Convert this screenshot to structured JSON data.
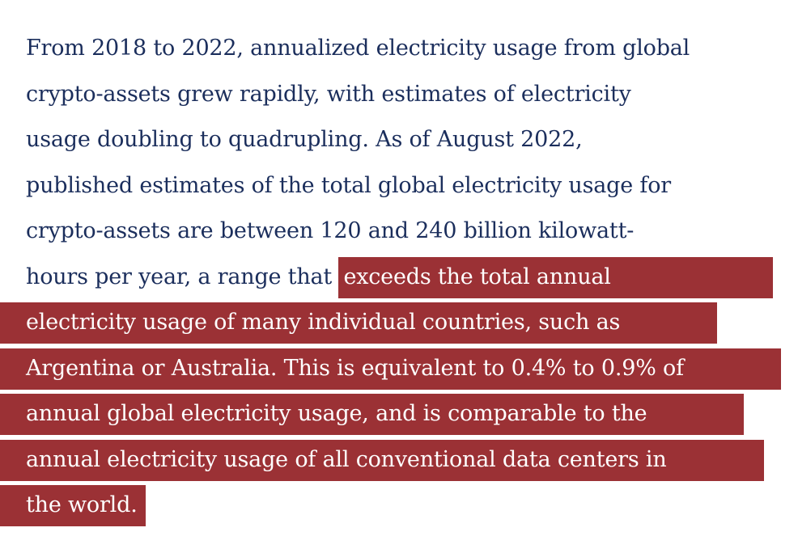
{
  "paragraph": {
    "plain_lines": [
      "From 2018 to 2022, annualized electricity usage from global",
      "crypto-assets grew rapidly, with estimates of electricity",
      "usage doubling to quadrupling. As of August 2022,",
      "published estimates of the total global electricity usage for",
      "crypto-assets are between 120 and 240 billion kilowatt-"
    ],
    "mixed_line": {
      "plain": "hours per year, a range that ",
      "highlighted": "exceeds the total annual"
    },
    "highlighted_lines": [
      "electricity usage of many individual countries, such as",
      "Argentina or Australia. This is equivalent to 0.4% to 0.9% of",
      "annual global electricity usage, and is comparable to the",
      "annual electricity usage of all conventional data centers in",
      "the world."
    ]
  },
  "colors": {
    "text": "#1b2e5c",
    "highlight_background": "#9b3135",
    "highlight_text": "#ffffff",
    "page_background": "#ffffff"
  }
}
